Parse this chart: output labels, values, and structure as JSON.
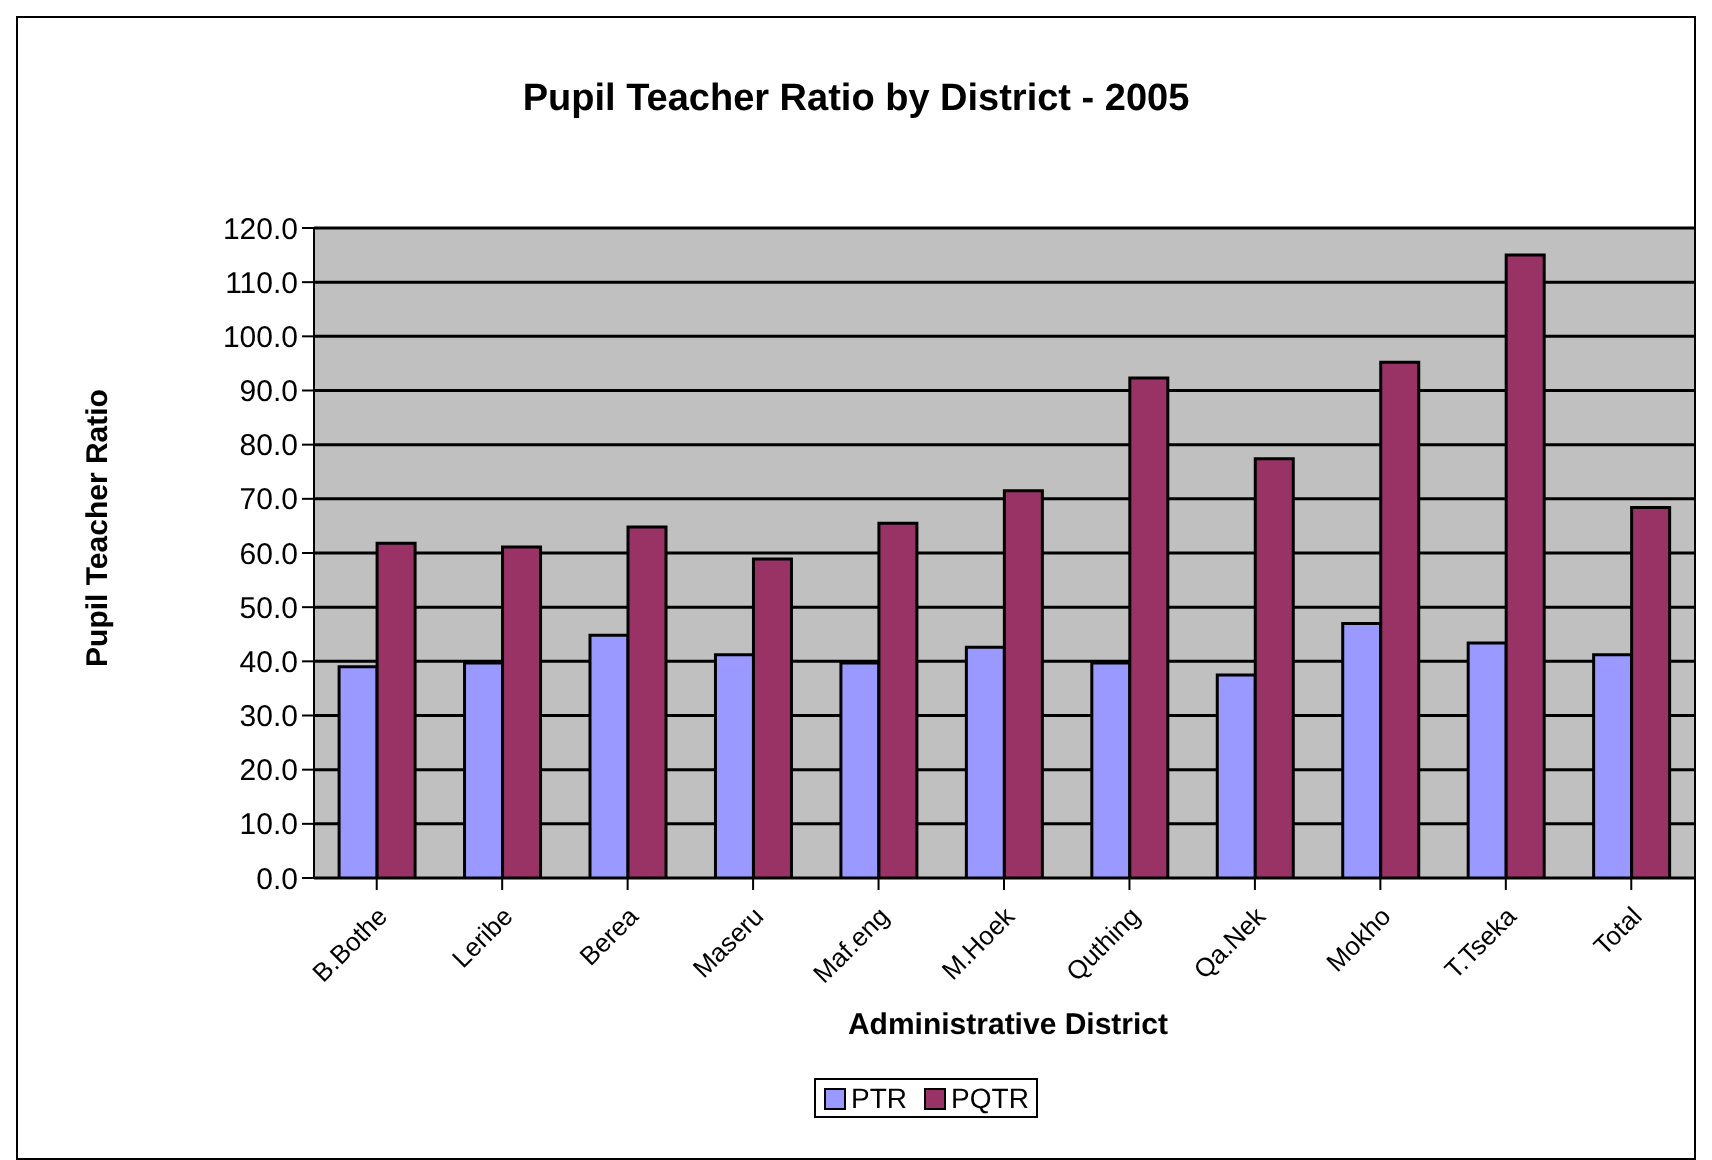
{
  "chart_data": {
    "type": "bar",
    "title": "Pupil Teacher Ratio by District - 2005",
    "xlabel": "Administrative District",
    "ylabel": "Pupil Teacher Ratio",
    "categories": [
      "B.Bothe",
      "Leribe",
      "Berea",
      "Maseru",
      "Maf.eng",
      "M.Hoek",
      "Quthing",
      "Qa.Nek",
      "Mokho",
      "T.Tseka",
      "Total"
    ],
    "series": [
      {
        "name": "PTR",
        "color": "#9999ff",
        "values": [
          39.0,
          39.7,
          44.8,
          41.2,
          39.7,
          42.6,
          39.7,
          37.5,
          47.0,
          43.4,
          41.2
        ]
      },
      {
        "name": "PQTR",
        "color": "#993366",
        "values": [
          61.8,
          61.1,
          64.8,
          58.9,
          65.5,
          71.5,
          92.3,
          77.4,
          95.2,
          115.0,
          68.4
        ]
      }
    ],
    "ylim": [
      0,
      120
    ],
    "yticks": [
      {
        "value": 0,
        "label": "0.0"
      },
      {
        "value": 10,
        "label": "10.0"
      },
      {
        "value": 20,
        "label": "20.0"
      },
      {
        "value": 30,
        "label": "30.0"
      },
      {
        "value": 40,
        "label": "40.0"
      },
      {
        "value": 50,
        "label": "50.0"
      },
      {
        "value": 60,
        "label": "60.0"
      },
      {
        "value": 70,
        "label": "70.0"
      },
      {
        "value": 80,
        "label": "80.0"
      },
      {
        "value": 90,
        "label": "90.0"
      },
      {
        "value": 100,
        "label": "100.0"
      },
      {
        "value": 110,
        "label": "110.0"
      },
      {
        "value": 120,
        "label": "120.0"
      }
    ],
    "grid": "y",
    "legend": "bottom"
  }
}
